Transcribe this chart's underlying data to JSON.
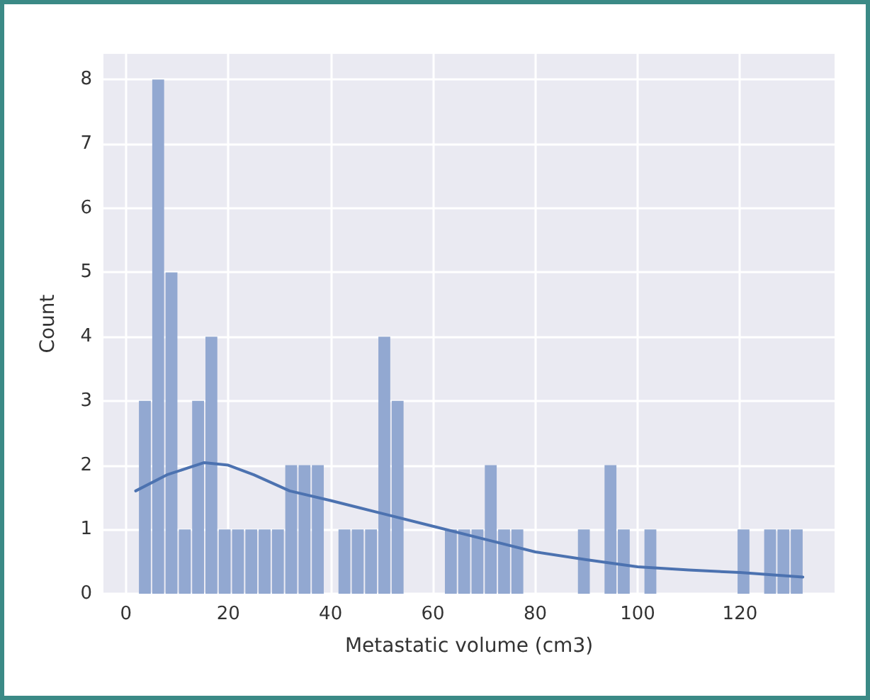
{
  "chart_data": {
    "type": "histogram",
    "xlabel": "Metastatic volume (cm3)",
    "ylabel": "Count",
    "xlim": [
      -4.4,
      138.5
    ],
    "xticks": [
      0,
      20,
      40,
      60,
      80,
      100,
      120
    ],
    "ylim": [
      0,
      8.4
    ],
    "yticks": [
      0,
      1,
      2,
      3,
      4,
      5,
      6,
      7,
      8
    ],
    "grid": true,
    "series": [
      {
        "color": "#92a8d1",
        "bins": [
          2.4,
          5.0,
          7.6,
          10.2,
          12.8,
          15.4,
          18.0,
          20.6,
          23.2,
          25.8,
          28.4,
          31.0,
          33.6,
          36.2,
          38.8,
          41.4,
          44.0,
          46.6,
          49.2,
          51.8,
          54.4,
          57.0,
          59.6,
          62.2,
          64.8,
          67.4,
          70.0,
          72.6,
          75.2,
          77.8,
          80.4,
          83.0,
          85.6,
          88.2,
          90.8,
          93.4,
          96.0,
          98.6,
          101.2,
          103.8,
          106.4,
          109.0,
          111.6,
          114.2,
          116.8,
          119.4,
          122.0,
          124.6,
          127.2,
          129.8,
          132.4
        ],
        "values": [
          3,
          8,
          5,
          1,
          3,
          4,
          1,
          1,
          1,
          1,
          1,
          2,
          2,
          2,
          0,
          1,
          1,
          1,
          4,
          3,
          0,
          0,
          0,
          1,
          1,
          1,
          2,
          1,
          1,
          0,
          0,
          0,
          0,
          1,
          0,
          2,
          1,
          0,
          1,
          0,
          0,
          0,
          0,
          0,
          0,
          1,
          0,
          1,
          1,
          1
        ]
      },
      {
        "type": "line",
        "color": "#4c72b0",
        "marker": "none",
        "line_style": "solid",
        "x": [
          1.9,
          8,
          15.3,
          20,
          25,
          32,
          40,
          50,
          60,
          70,
          80,
          90,
          100,
          110,
          120,
          132.3
        ],
        "values": [
          1.6,
          1.85,
          2.04,
          2.0,
          1.85,
          1.6,
          1.45,
          1.25,
          1.05,
          0.85,
          0.65,
          0.53,
          0.42,
          0.37,
          0.33,
          0.26
        ]
      }
    ]
  }
}
